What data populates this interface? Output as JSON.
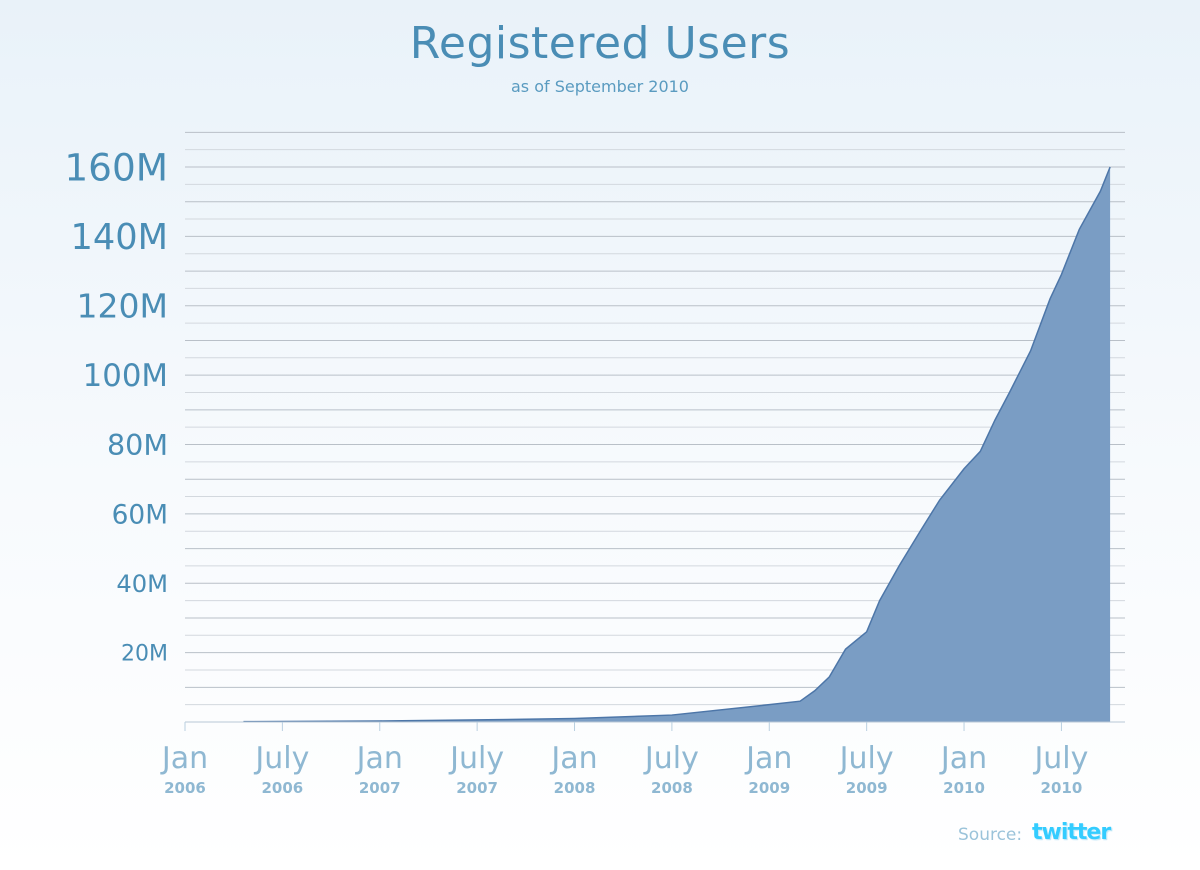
{
  "chart_data": {
    "type": "area",
    "title": "Registered Users",
    "subtitle": "as of September 2010",
    "xlabel": "",
    "ylabel": "",
    "x_unit": "months since Jan 2006",
    "x_ticks": [
      {
        "month": 0,
        "label": "Jan",
        "year": "2006"
      },
      {
        "month": 6,
        "label": "July",
        "year": "2006"
      },
      {
        "month": 12,
        "label": "Jan",
        "year": "2007"
      },
      {
        "month": 18,
        "label": "July",
        "year": "2007"
      },
      {
        "month": 24,
        "label": "Jan",
        "year": "2008"
      },
      {
        "month": 30,
        "label": "July",
        "year": "2008"
      },
      {
        "month": 36,
        "label": "Jan",
        "year": "2009"
      },
      {
        "month": 42,
        "label": "July",
        "year": "2009"
      },
      {
        "month": 48,
        "label": "Jan",
        "year": "2010"
      },
      {
        "month": 54,
        "label": "July",
        "year": "2010"
      }
    ],
    "y_ticks": [
      {
        "value": 20,
        "label": "20M"
      },
      {
        "value": 40,
        "label": "40M"
      },
      {
        "value": 60,
        "label": "60M"
      },
      {
        "value": 80,
        "label": "80M"
      },
      {
        "value": 100,
        "label": "100M"
      },
      {
        "value": 120,
        "label": "120M"
      },
      {
        "value": 140,
        "label": "140M"
      },
      {
        "value": 160,
        "label": "160M"
      }
    ],
    "xlim": [
      0,
      58
    ],
    "ylim": [
      0,
      170
    ],
    "grid": true,
    "series": [
      {
        "name": "Registered Users (M)",
        "color": "#7a9dc4",
        "line_color": "#4d76a8",
        "x": [
          3.6,
          12,
          18,
          24,
          30,
          36,
          37.9,
          38.8,
          39.7,
          40.7,
          42,
          42.8,
          44,
          45.3,
          46.5,
          48,
          49,
          49.9,
          50.8,
          52.1,
          53.3,
          54,
          55.1,
          56.4,
          57
        ],
        "y": [
          0.1,
          0.3,
          0.6,
          1,
          2,
          5,
          6,
          9,
          13,
          21,
          26,
          35,
          45,
          55,
          64,
          73,
          78,
          87,
          95,
          107,
          122,
          129,
          142,
          153,
          160
        ]
      }
    ]
  },
  "footer": {
    "source_label": "Source:",
    "source_name": "twitter"
  }
}
